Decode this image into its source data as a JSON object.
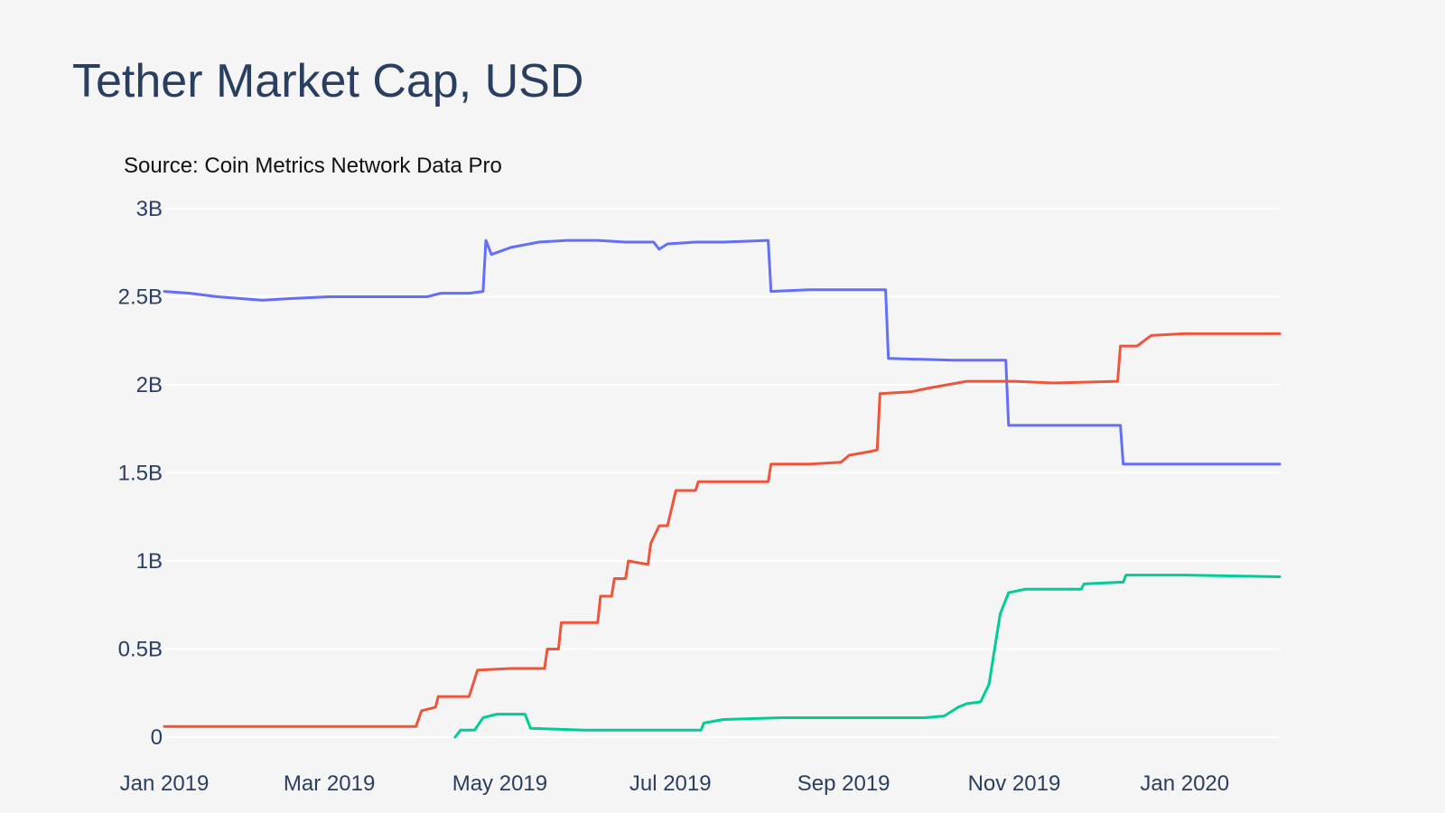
{
  "chart_data": {
    "type": "line",
    "title": "Tether Market Cap, USD",
    "subtitle": "Source: Coin Metrics Network Data Pro",
    "xlabel": "",
    "ylabel": "",
    "x_range": [
      "2019-01-01",
      "2020-02-04"
    ],
    "ylim": [
      0,
      3000000000
    ],
    "y_ticks": [
      {
        "value": 0,
        "label": "0"
      },
      {
        "value": 500000000,
        "label": "0.5B"
      },
      {
        "value": 1000000000,
        "label": "1B"
      },
      {
        "value": 1500000000,
        "label": "1.5B"
      },
      {
        "value": 2000000000,
        "label": "2B"
      },
      {
        "value": 2500000000,
        "label": "2.5B"
      },
      {
        "value": 3000000000,
        "label": "3B"
      }
    ],
    "x_ticks": [
      {
        "date": "2019-01-01",
        "label": "Jan 2019"
      },
      {
        "date": "2019-03-01",
        "label": "Mar 2019"
      },
      {
        "date": "2019-05-01",
        "label": "May 2019"
      },
      {
        "date": "2019-07-01",
        "label": "Jul 2019"
      },
      {
        "date": "2019-09-01",
        "label": "Sep 2019"
      },
      {
        "date": "2019-11-01",
        "label": "Nov 2019"
      },
      {
        "date": "2020-01-01",
        "label": "Jan 2020"
      }
    ],
    "grid": true,
    "legend": "none",
    "series": [
      {
        "color": "#636efa",
        "points": [
          [
            "2019-01-01",
            2530000000
          ],
          [
            "2019-01-10",
            2520000000
          ],
          [
            "2019-01-20",
            2500000000
          ],
          [
            "2019-02-05",
            2480000000
          ],
          [
            "2019-02-15",
            2490000000
          ],
          [
            "2019-03-01",
            2500000000
          ],
          [
            "2019-03-20",
            2500000000
          ],
          [
            "2019-04-05",
            2500000000
          ],
          [
            "2019-04-10",
            2520000000
          ],
          [
            "2019-04-20",
            2520000000
          ],
          [
            "2019-04-25",
            2530000000
          ],
          [
            "2019-04-26",
            2820000000
          ],
          [
            "2019-04-28",
            2740000000
          ],
          [
            "2019-05-05",
            2780000000
          ],
          [
            "2019-05-15",
            2810000000
          ],
          [
            "2019-05-25",
            2820000000
          ],
          [
            "2019-06-05",
            2820000000
          ],
          [
            "2019-06-15",
            2810000000
          ],
          [
            "2019-06-25",
            2810000000
          ],
          [
            "2019-06-27",
            2770000000
          ],
          [
            "2019-06-30",
            2800000000
          ],
          [
            "2019-07-10",
            2810000000
          ],
          [
            "2019-07-20",
            2810000000
          ],
          [
            "2019-08-05",
            2820000000
          ],
          [
            "2019-08-06",
            2530000000
          ],
          [
            "2019-08-20",
            2540000000
          ],
          [
            "2019-09-10",
            2540000000
          ],
          [
            "2019-09-16",
            2540000000
          ],
          [
            "2019-09-17",
            2150000000
          ],
          [
            "2019-10-10",
            2140000000
          ],
          [
            "2019-10-29",
            2140000000
          ],
          [
            "2019-10-30",
            1770000000
          ],
          [
            "2019-11-20",
            1770000000
          ],
          [
            "2019-12-09",
            1770000000
          ],
          [
            "2019-12-10",
            1550000000
          ],
          [
            "2020-01-01",
            1550000000
          ],
          [
            "2020-02-04",
            1550000000
          ]
        ]
      },
      {
        "color": "#ef553b",
        "points": [
          [
            "2019-01-01",
            60000000
          ],
          [
            "2019-02-15",
            60000000
          ],
          [
            "2019-03-31",
            60000000
          ],
          [
            "2019-04-01",
            60000000
          ],
          [
            "2019-04-03",
            150000000
          ],
          [
            "2019-04-08",
            170000000
          ],
          [
            "2019-04-09",
            230000000
          ],
          [
            "2019-04-20",
            230000000
          ],
          [
            "2019-04-23",
            380000000
          ],
          [
            "2019-05-05",
            390000000
          ],
          [
            "2019-05-17",
            390000000
          ],
          [
            "2019-05-18",
            500000000
          ],
          [
            "2019-05-22",
            500000000
          ],
          [
            "2019-05-23",
            650000000
          ],
          [
            "2019-06-05",
            650000000
          ],
          [
            "2019-06-06",
            800000000
          ],
          [
            "2019-06-10",
            800000000
          ],
          [
            "2019-06-11",
            900000000
          ],
          [
            "2019-06-15",
            900000000
          ],
          [
            "2019-06-16",
            1000000000
          ],
          [
            "2019-06-23",
            980000000
          ],
          [
            "2019-06-24",
            1100000000
          ],
          [
            "2019-06-27",
            1200000000
          ],
          [
            "2019-06-30",
            1200000000
          ],
          [
            "2019-07-03",
            1400000000
          ],
          [
            "2019-07-10",
            1400000000
          ],
          [
            "2019-07-11",
            1450000000
          ],
          [
            "2019-08-05",
            1450000000
          ],
          [
            "2019-08-06",
            1550000000
          ],
          [
            "2019-08-20",
            1550000000
          ],
          [
            "2019-08-31",
            1560000000
          ],
          [
            "2019-09-03",
            1600000000
          ],
          [
            "2019-09-10",
            1620000000
          ],
          [
            "2019-09-13",
            1630000000
          ],
          [
            "2019-09-14",
            1950000000
          ],
          [
            "2019-09-25",
            1960000000
          ],
          [
            "2019-10-01",
            1980000000
          ],
          [
            "2019-10-08",
            2000000000
          ],
          [
            "2019-10-15",
            2020000000
          ],
          [
            "2019-11-01",
            2020000000
          ],
          [
            "2019-11-15",
            2010000000
          ],
          [
            "2019-12-08",
            2020000000
          ],
          [
            "2019-12-09",
            2220000000
          ],
          [
            "2019-12-15",
            2220000000
          ],
          [
            "2019-12-20",
            2280000000
          ],
          [
            "2020-01-01",
            2290000000
          ],
          [
            "2020-02-04",
            2290000000
          ]
        ]
      },
      {
        "color": "#00cc96",
        "points": [
          [
            "2019-04-15",
            0
          ],
          [
            "2019-04-17",
            40000000
          ],
          [
            "2019-04-22",
            40000000
          ],
          [
            "2019-04-25",
            110000000
          ],
          [
            "2019-04-30",
            130000000
          ],
          [
            "2019-05-10",
            130000000
          ],
          [
            "2019-05-12",
            50000000
          ],
          [
            "2019-05-31",
            40000000
          ],
          [
            "2019-06-30",
            40000000
          ],
          [
            "2019-07-12",
            40000000
          ],
          [
            "2019-07-13",
            80000000
          ],
          [
            "2019-07-20",
            100000000
          ],
          [
            "2019-08-10",
            110000000
          ],
          [
            "2019-09-10",
            110000000
          ],
          [
            "2019-09-30",
            110000000
          ],
          [
            "2019-10-07",
            120000000
          ],
          [
            "2019-10-12",
            170000000
          ],
          [
            "2019-10-15",
            190000000
          ],
          [
            "2019-10-20",
            200000000
          ],
          [
            "2019-10-23",
            300000000
          ],
          [
            "2019-10-25",
            500000000
          ],
          [
            "2019-10-27",
            700000000
          ],
          [
            "2019-10-30",
            820000000
          ],
          [
            "2019-11-05",
            840000000
          ],
          [
            "2019-11-25",
            840000000
          ],
          [
            "2019-11-26",
            870000000
          ],
          [
            "2019-12-10",
            880000000
          ],
          [
            "2019-12-11",
            920000000
          ],
          [
            "2020-01-01",
            920000000
          ],
          [
            "2020-02-04",
            910000000
          ]
        ]
      }
    ]
  }
}
